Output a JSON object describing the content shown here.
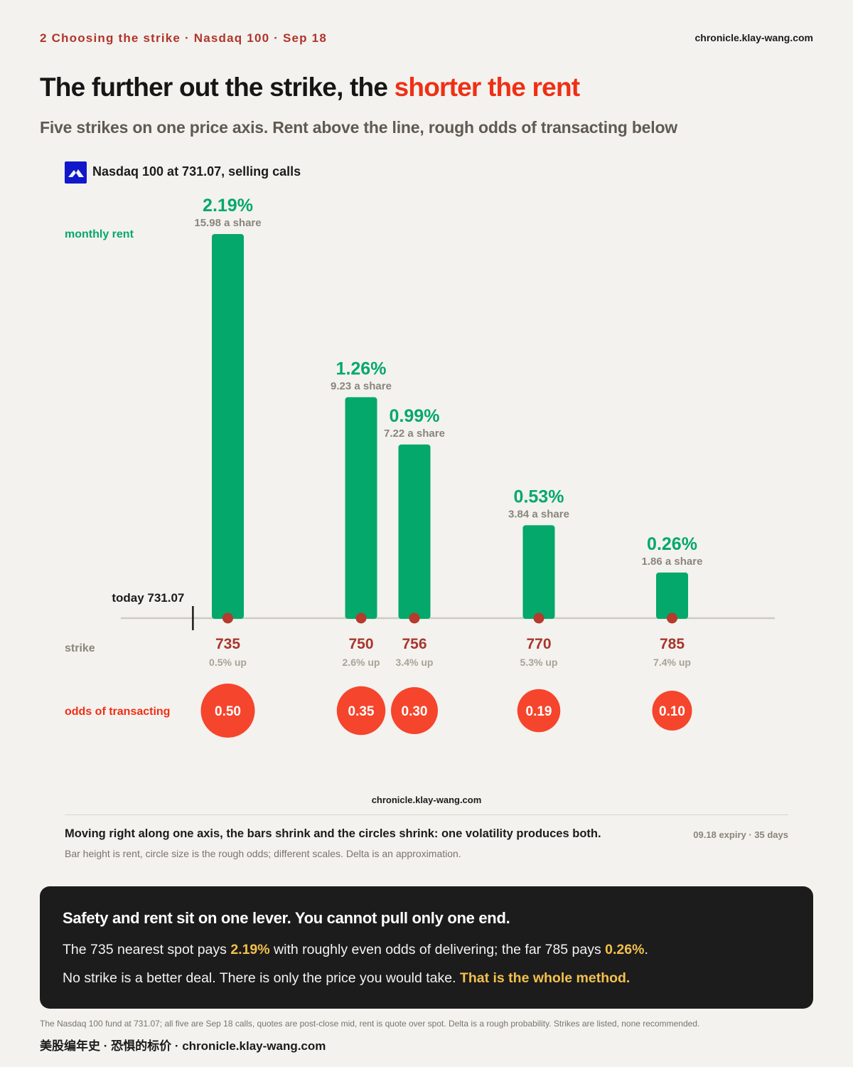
{
  "header": {
    "kicker": "2  Choosing the strike · Nasdaq 100 · Sep 18",
    "site": "chronicle.klay-wang.com",
    "title_lead": "The further out the strike, the ",
    "title_highlight": "shorter the rent",
    "subtitle": "Five strikes on one price axis. Rent above the line, rough odds of transacting below"
  },
  "legend": {
    "icon": "mountain-logo-icon",
    "label": "Nasdaq 100 at 731.07, selling calls"
  },
  "colors": {
    "bar": "#04a86a",
    "rent_text": "#04a86a",
    "strike_text": "#a7362c",
    "odds_circle": "#f5452c",
    "odds_label": "#ef2f15",
    "dot": "#b63a2d",
    "axis": "#cfcbc1",
    "highlight": "#ef2f15",
    "box_highlight": "#f2c04c"
  },
  "chart_data": {
    "type": "bar",
    "x_axis": "strike price",
    "spot": 731.07,
    "spot_label": "today 731.07",
    "row_labels": {
      "rent": "monthly rent",
      "strike": "strike",
      "odds": "odds of transacting"
    },
    "strikes": [
      735,
      750,
      756,
      770,
      785
    ],
    "strike_labels": [
      "735",
      "750",
      "756",
      "770",
      "785"
    ],
    "distance_labels": [
      "0.5% up",
      "2.6% up",
      "3.4% up",
      "5.3% up",
      "7.4% up"
    ],
    "rent_pct": [
      2.19,
      1.26,
      0.99,
      0.53,
      0.26
    ],
    "rent_labels": [
      "2.19%",
      "1.26%",
      "0.99%",
      "0.53%",
      "0.26%"
    ],
    "premium_labels": [
      "15.98 a share",
      "9.23 a share",
      "7.22 a share",
      "3.84 a share",
      "1.86 a share"
    ],
    "odds": [
      0.5,
      0.35,
      0.3,
      0.19,
      0.1
    ],
    "odds_labels": [
      "0.50",
      "0.35",
      "0.30",
      "0.19",
      "0.10"
    ]
  },
  "footer": {
    "watermark": "chronicle.klay-wang.com",
    "takeaway": "Moving right along one axis, the bars shrink and the circles shrink: one volatility produces both.",
    "meta": "09.18 expiry · 35 days",
    "note": "Bar height is rent, circle size is the rough odds; different scales. Delta is an approximation."
  },
  "callout": {
    "heading": "Safety and rent sit on one lever. You cannot pull only one end.",
    "line1_a": "The 735 nearest spot pays ",
    "line1_b": "2.19%",
    "line1_c": " with roughly even odds of delivering; the far 785 pays ",
    "line1_d": "0.26%",
    "line1_e": ".",
    "line2_a": "No strike is a better deal. There is only the price you would take. ",
    "line2_b": "That is the whole method."
  },
  "bottom": {
    "disclaimer": "The Nasdaq 100 fund at 731.07; all five are Sep 18 calls, quotes are post-close mid, rent is quote over spot. Delta is a rough probability. Strikes are listed, none recommended.",
    "signature": "美股编年史 · 恐惧的标价 · chronicle.klay-wang.com"
  }
}
